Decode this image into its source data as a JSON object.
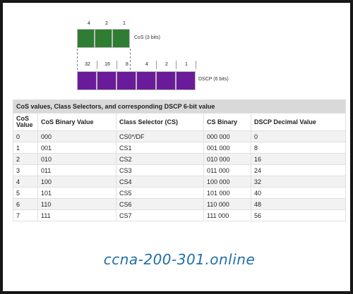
{
  "cos_diagram": {
    "bit_values": [
      "4",
      "2",
      "1"
    ],
    "label": "CoS (3 bits)",
    "color": "#2e7d32"
  },
  "dscp_diagram": {
    "bit_values": [
      "32",
      "16",
      "8",
      "4",
      "2",
      "1"
    ],
    "label": "DSCP (6 bits)",
    "color": "#6a1b9a"
  },
  "table": {
    "title": "CoS values, Class Selectors, and corresponding DSCP 6-bit value",
    "headers": [
      "CoS Value",
      "CoS Binary Value",
      "Class Selector (CS)",
      "CS Binary",
      "DSCP Decimal Value"
    ],
    "rows": [
      [
        "0",
        "000",
        "CS0*/DF",
        "000 000",
        "0"
      ],
      [
        "1",
        "001",
        "CS1",
        "001 000",
        "8"
      ],
      [
        "2",
        "010",
        "CS2",
        "010 000",
        "16"
      ],
      [
        "3",
        "011",
        "CS3",
        "011 000",
        "24"
      ],
      [
        "4",
        "100",
        "CS4",
        "100 000",
        "32"
      ],
      [
        "5",
        "101",
        "CS5",
        "101 000",
        "40"
      ],
      [
        "6",
        "110",
        "CS6",
        "110 000",
        "48"
      ],
      [
        "7",
        "111",
        "CS7",
        "111 000",
        "56"
      ]
    ]
  },
  "watermark": "ccna-200-301.online"
}
